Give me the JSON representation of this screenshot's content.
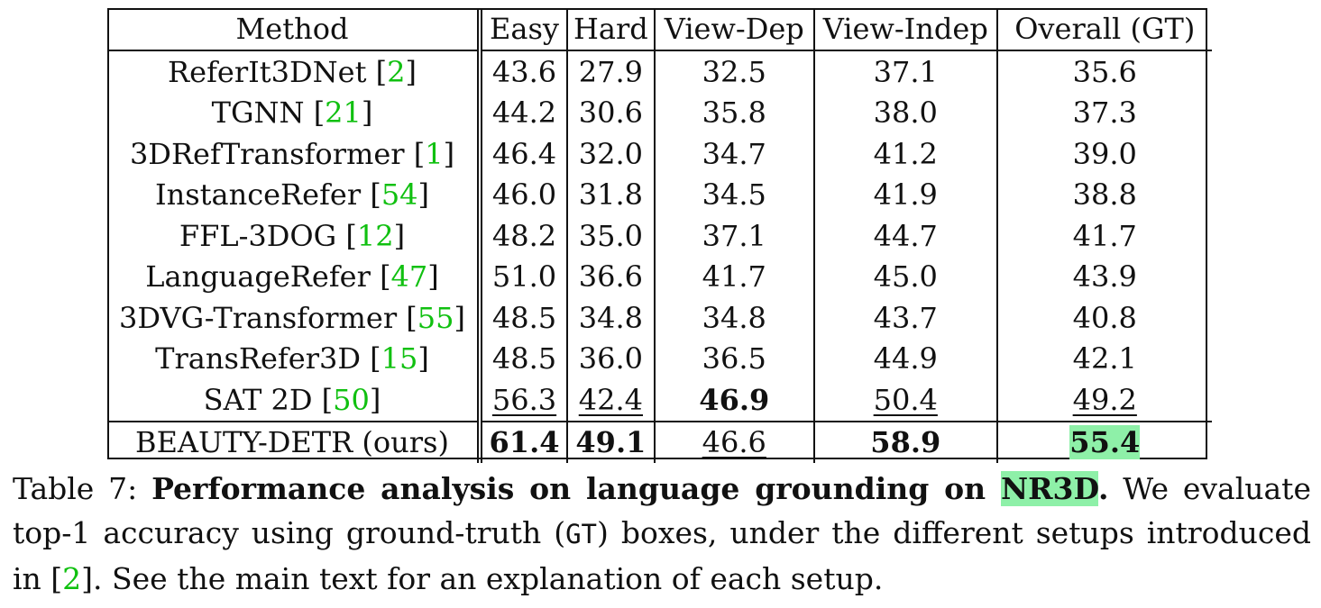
{
  "table": {
    "headers": [
      "Method",
      "Easy",
      "Hard",
      "View-Dep",
      "View-Indep",
      "Overall (GT)"
    ],
    "rows": [
      {
        "method": "ReferIt3DNet",
        "ref": "2",
        "values": [
          "43.6",
          "27.9",
          "32.5",
          "37.1",
          "35.6"
        ]
      },
      {
        "method": "TGNN",
        "ref": "21",
        "values": [
          "44.2",
          "30.6",
          "35.8",
          "38.0",
          "37.3"
        ]
      },
      {
        "method": "3DRefTransformer",
        "ref": "1",
        "values": [
          "46.4",
          "32.0",
          "34.7",
          "41.2",
          "39.0"
        ]
      },
      {
        "method": "InstanceRefer",
        "ref": "54",
        "values": [
          "46.0",
          "31.8",
          "34.5",
          "41.9",
          "38.8"
        ]
      },
      {
        "method": "FFL-3DOG",
        "ref": "12",
        "values": [
          "48.2",
          "35.0",
          "37.1",
          "44.7",
          "41.7"
        ]
      },
      {
        "method": "LanguageRefer",
        "ref": "47",
        "values": [
          "51.0",
          "36.6",
          "41.7",
          "45.0",
          "43.9"
        ]
      },
      {
        "method": "3DVG-Transformer",
        "ref": "55",
        "values": [
          "48.5",
          "34.8",
          "34.8",
          "43.7",
          "40.8"
        ]
      },
      {
        "method": "TransRefer3D",
        "ref": "15",
        "values": [
          "48.5",
          "36.0",
          "36.5",
          "44.9",
          "42.1"
        ]
      },
      {
        "method": "SAT 2D",
        "ref": "50",
        "values": [
          "56.3",
          "42.4",
          "46.9",
          "50.4",
          "49.2"
        ]
      }
    ],
    "ours": {
      "method": "BEAUTY-DETR (ours)",
      "values": [
        "61.4",
        "49.1",
        "46.6",
        "58.9",
        "55.4"
      ]
    }
  },
  "caption": {
    "label": "Table 7:",
    "title_part1": "Performance analysis on language grounding on",
    "title_dataset": "NR3D",
    "title_end": ".",
    "text_part1": "We evaluate top-1 accuracy using ground-truth (",
    "gt_code": "GT",
    "text_part2": ") boxes, under the different setups introduced in [",
    "ref": "2",
    "text_part3": "]. See the main text for an explanation of each setup."
  },
  "colors": {
    "citation": "#10c010",
    "highlight": "#8ef0a8"
  }
}
